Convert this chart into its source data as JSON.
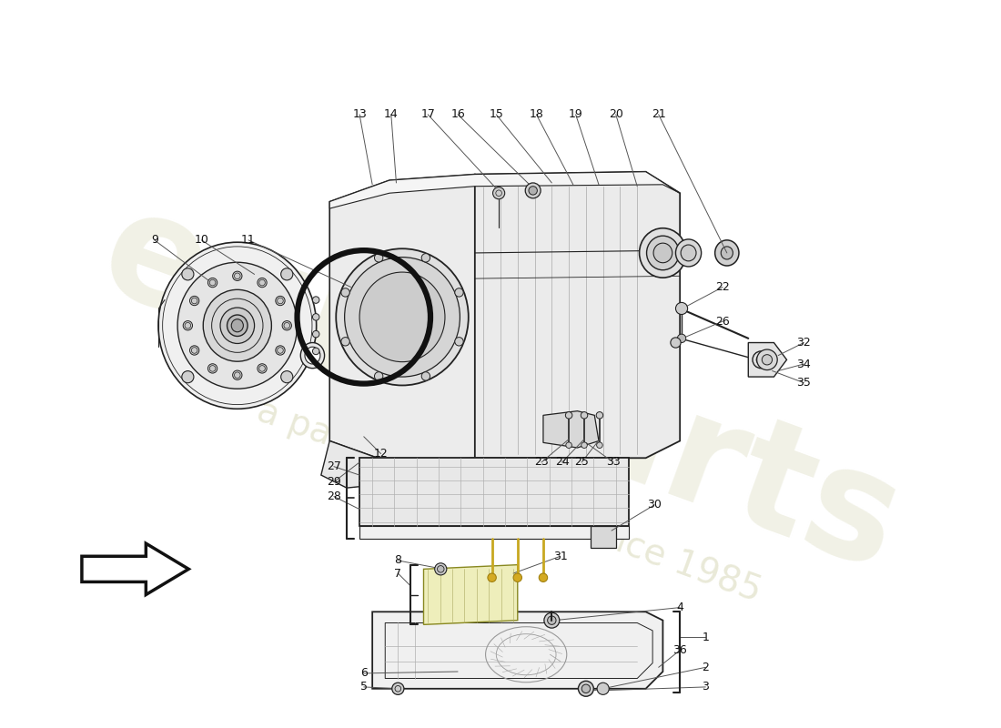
{
  "bg_color": "#ffffff",
  "line_color": "#222222",
  "dark_line": "#111111",
  "gray_fill": "#e8e8e8",
  "light_fill": "#f2f2f2",
  "mid_fill": "#d5d5d5",
  "yellow_fill": "#f0f0aa",
  "watermark1": "euroParts",
  "watermark2": "a passion for parts since 1985",
  "wm_color": "#d8d8b8",
  "label_fs": 9,
  "label_color": "#111111",
  "leader_color": "#555555",
  "figsize": [
    11.0,
    8.0
  ],
  "dpi": 100
}
